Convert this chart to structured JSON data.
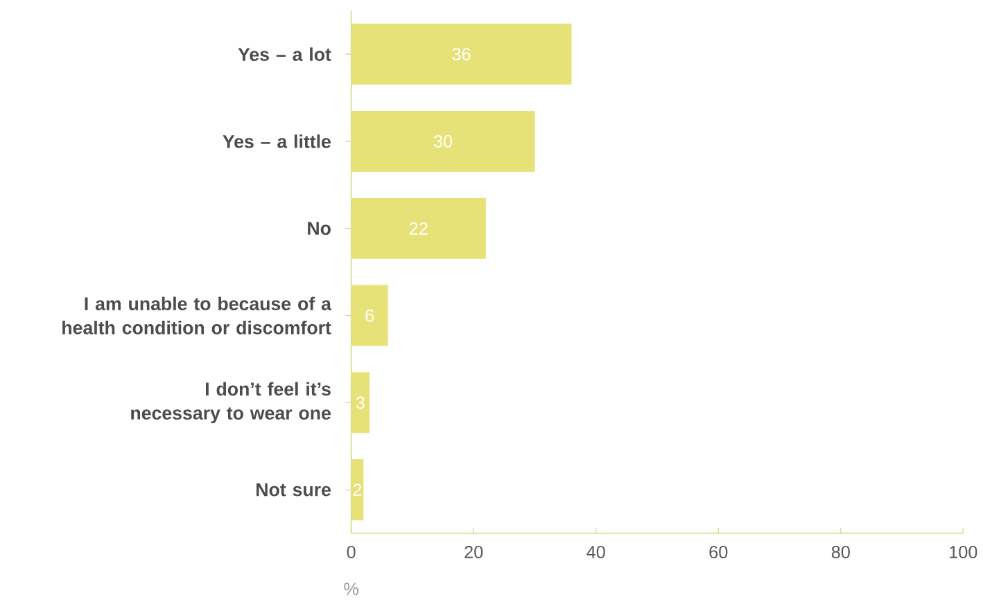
{
  "chart_data": {
    "type": "bar",
    "orientation": "horizontal",
    "categories": [
      "Yes – a lot",
      "Yes – a little",
      "No",
      "I am unable to because of a health condition or discomfort",
      "I don’t feel it’s necessary to wear one",
      "Not sure"
    ],
    "values": [
      36,
      30,
      22,
      6,
      3,
      2
    ],
    "color": "#e6e278",
    "xlim": [
      0,
      100
    ],
    "xticks": [
      0,
      20,
      40,
      60,
      80,
      100
    ],
    "xlabel": "%",
    "data_labels": true
  }
}
